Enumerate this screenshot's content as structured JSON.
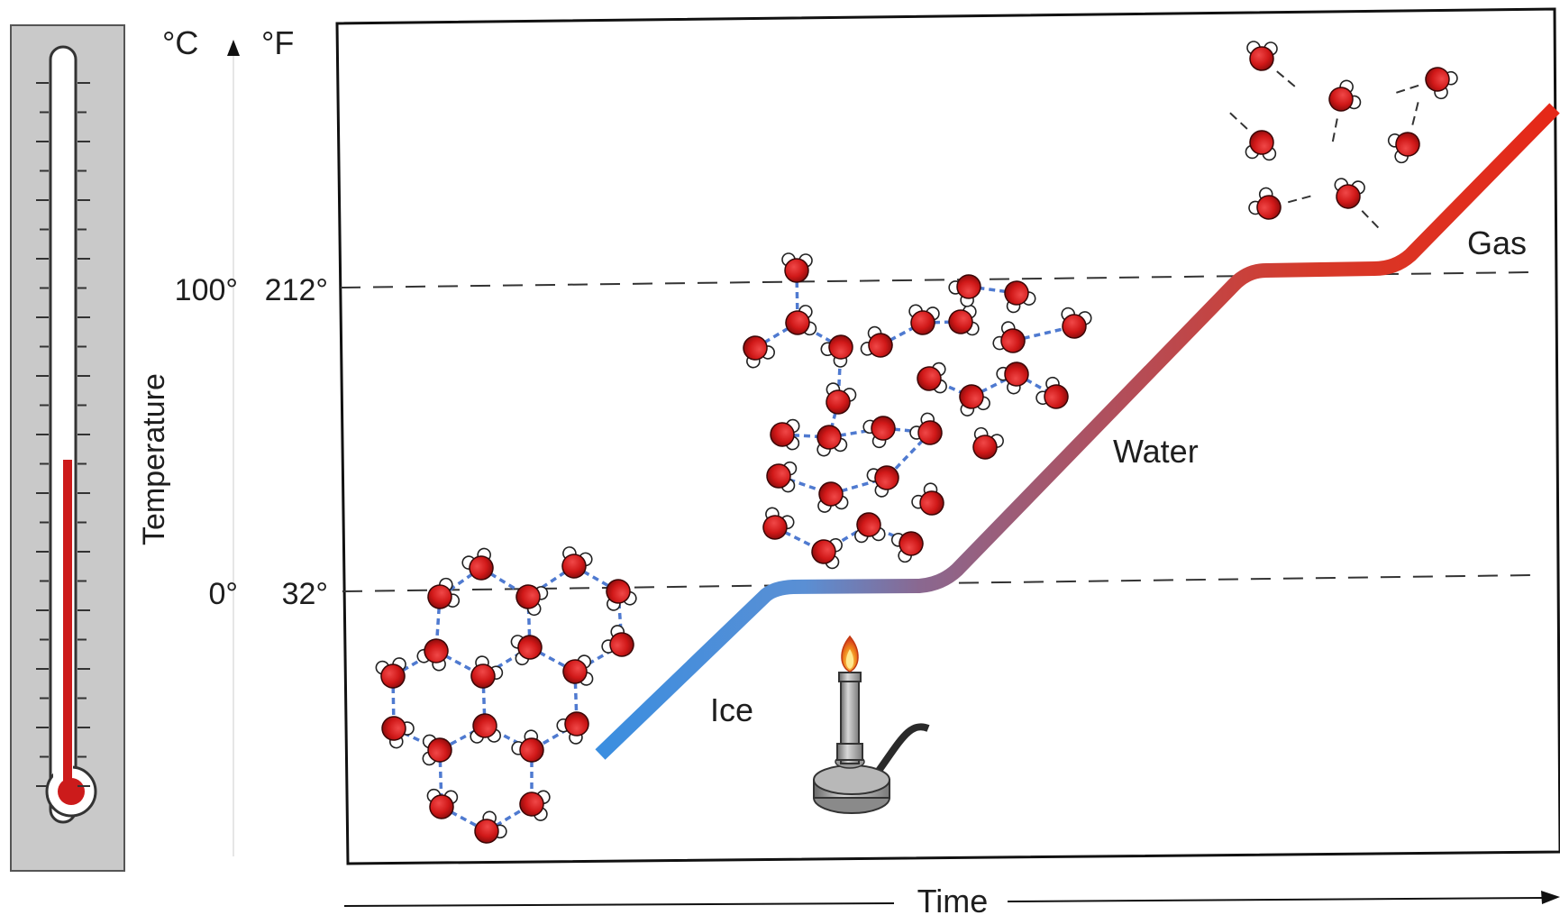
{
  "axis": {
    "celsius_unit": "°C",
    "fahrenheit_unit": "°F",
    "y_label": "Temperature",
    "x_label": "Time"
  },
  "ticks": [
    {
      "celsius": "100°",
      "fahrenheit": "212°"
    },
    {
      "celsius": "0°",
      "fahrenheit": "32°"
    }
  ],
  "phases": {
    "ice": "Ice",
    "water": "Water",
    "gas": "Gas"
  },
  "colors": {
    "ice": "#3a8ee0",
    "water": "#9a5a70",
    "gas": "#e0281c",
    "thermometer_liquid": "#cc1b1b",
    "molecule_oxygen": "#d01818",
    "hydrogen_bond": "#4f7ad0"
  },
  "icons": {
    "burner": "bunsen-burner-icon",
    "thermometer": "thermometer-icon"
  }
}
